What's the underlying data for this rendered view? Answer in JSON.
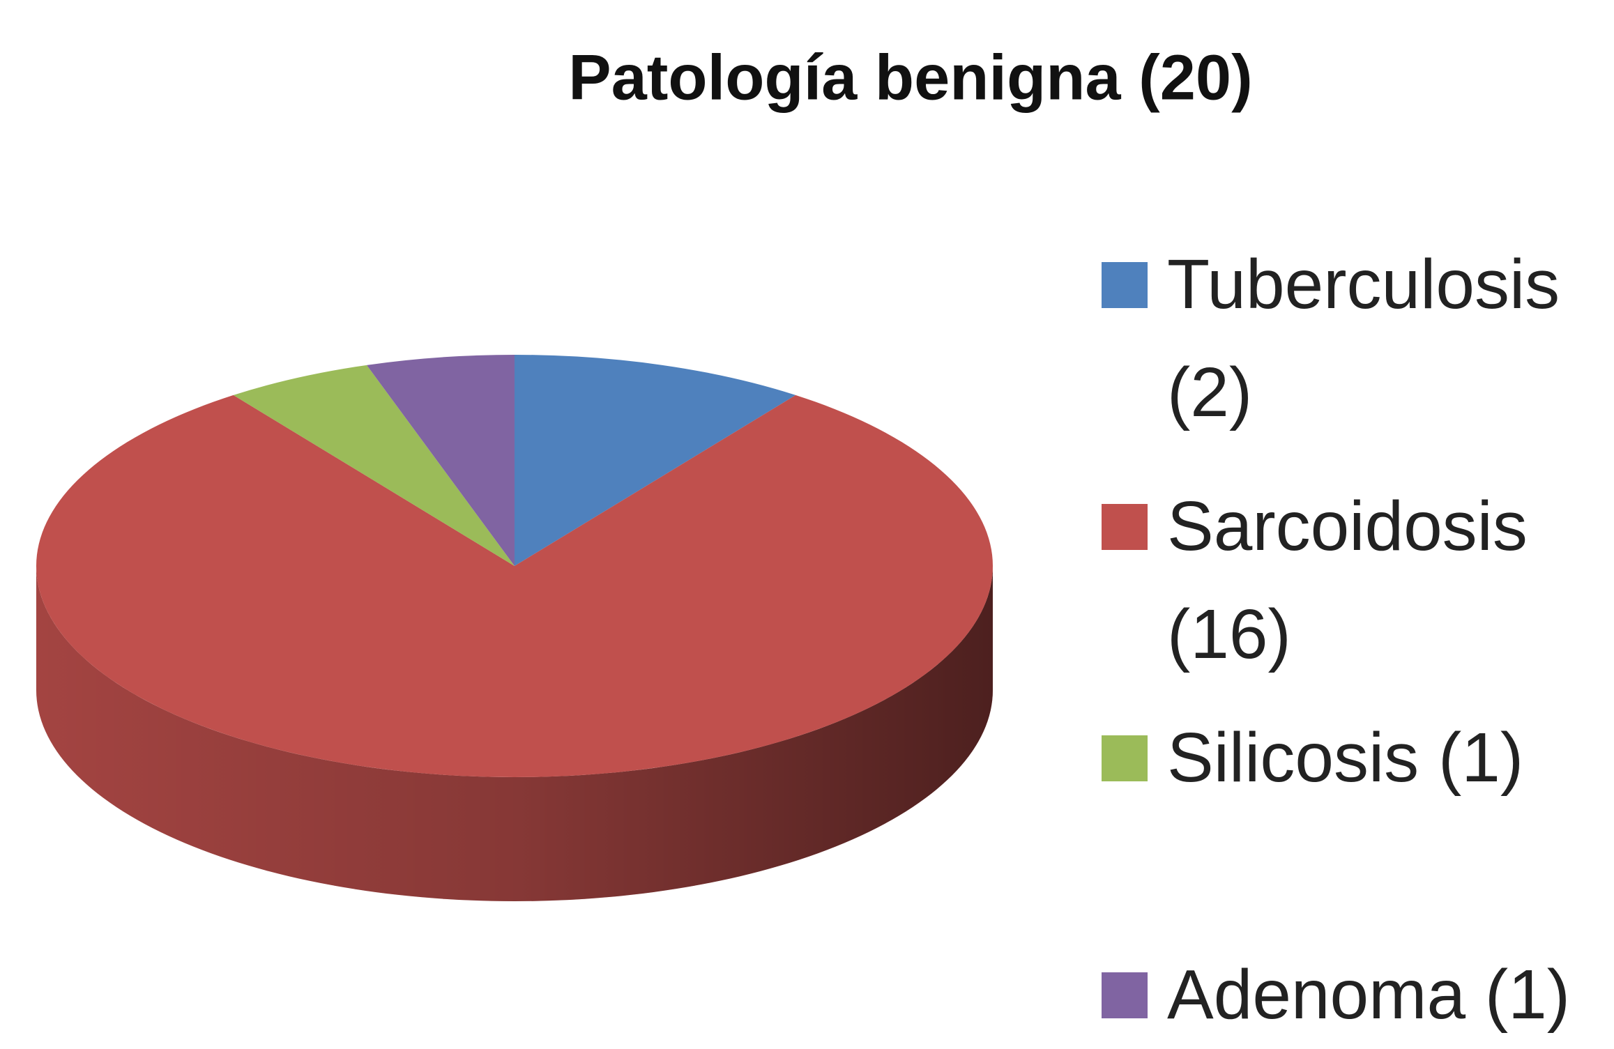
{
  "chart_data": {
    "type": "pie",
    "title": "Patología benigna (20)",
    "categories": [
      "Tuberculosis (2)",
      "Sarcoidosis (16)",
      "Silicosis (1)",
      "Adenoma (1)"
    ],
    "values": [
      2,
      16,
      1,
      1
    ],
    "colors": [
      "#4f81bd",
      "#c0504d",
      "#9bbb59",
      "#8064a2"
    ],
    "legend": "right"
  }
}
